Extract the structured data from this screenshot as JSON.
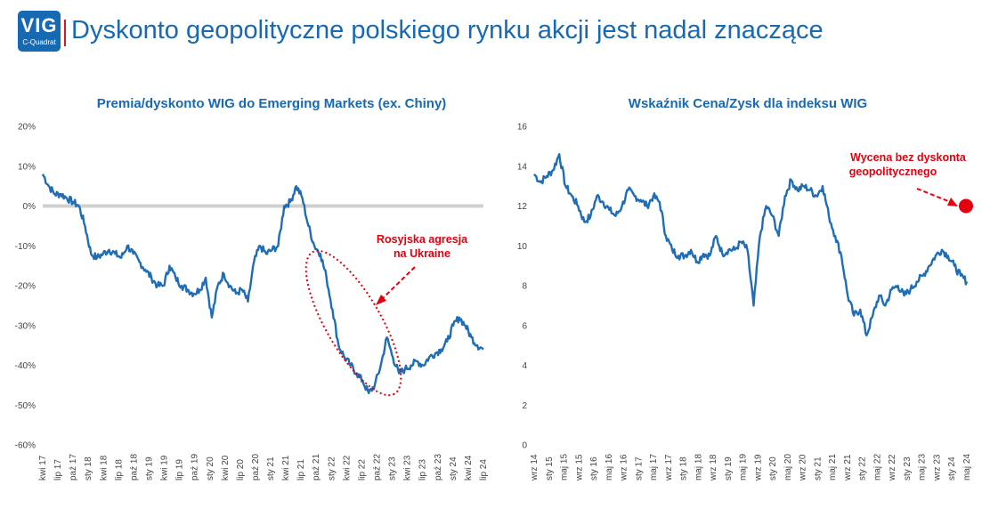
{
  "header": {
    "logo_text": "VIG",
    "logo_subtext": "C-Quadrat",
    "title": "Dyskonto geopolityczne polskiego rynku akcji jest nadal znaczące"
  },
  "colors": {
    "brand": "#1769b2",
    "series": "#1f6db4",
    "accent": "#e3000f",
    "zero_line": "#d0d0d0"
  },
  "chart_data": [
    {
      "type": "line",
      "title": "Premia/dyskonto WIG do Emerging Markets (ex. Chiny)",
      "ylim": [
        -60,
        20
      ],
      "yticks": [
        "20%",
        "10%",
        "0%",
        "-10%",
        "-20%",
        "-30%",
        "-40%",
        "-50%",
        "-60%"
      ],
      "ytick_values": [
        20,
        10,
        0,
        -10,
        -20,
        -30,
        -40,
        -50,
        -60
      ],
      "xticks": [
        "kwi 17",
        "lip 17",
        "paź 17",
        "sty 18",
        "kwi 18",
        "lip 18",
        "paź 18",
        "sty 19",
        "kwi 19",
        "lip 19",
        "paź 19",
        "sty 20",
        "kwi 20",
        "lip 20",
        "paź 20",
        "sty 21",
        "kwi 21",
        "lip 21",
        "paź 21",
        "sty 22",
        "kwi 22",
        "lip 22",
        "paź 22",
        "sty 23",
        "kwi 23",
        "lip 23",
        "paź 23",
        "sty 24",
        "kwi 24",
        "lip 24"
      ],
      "zero_line": true,
      "series": [
        {
          "values": [
            8,
            5,
            3,
            3,
            2,
            1,
            0,
            -5,
            -12,
            -13,
            -12,
            -11,
            -12,
            -13,
            -10,
            -12,
            -14,
            -16,
            -18,
            -20,
            -20,
            -15,
            -18,
            -20,
            -21,
            -22,
            -21,
            -18,
            -28,
            -20,
            -17,
            -20,
            -22,
            -21,
            -24,
            -14,
            -10,
            -12,
            -11,
            -10,
            0,
            1,
            5,
            2,
            -5,
            -10,
            -12,
            -18,
            -26,
            -35,
            -38,
            -40,
            -42,
            -44,
            -47,
            -45,
            -40,
            -33,
            -38,
            -42,
            -41,
            -40,
            -39,
            -40,
            -38,
            -37,
            -36,
            -34,
            -30,
            -28,
            -30,
            -33,
            -35,
            -36
          ]
        }
      ],
      "annotation": "Rosyjska agresja na Ukraine"
    },
    {
      "type": "line",
      "title": "Wskaźnik Cena/Zysk dla indeksu WIG",
      "ylim": [
        0,
        16
      ],
      "yticks": [
        "16",
        "14",
        "12",
        "10",
        "8",
        "6",
        "4",
        "2",
        "0"
      ],
      "ytick_values": [
        16,
        14,
        12,
        10,
        8,
        6,
        4,
        2,
        0
      ],
      "xticks": [
        "wrz 14",
        "sty 15",
        "maj 15",
        "wrz 15",
        "sty 16",
        "maj 16",
        "wrz 16",
        "sty 17",
        "maj 17",
        "wrz 17",
        "sty 18",
        "maj 18",
        "wrz 18",
        "sty 19",
        "maj 19",
        "wrz 19",
        "sty 20",
        "maj 20",
        "wrz 20",
        "sty 21",
        "maj 21",
        "wrz 21",
        "sty 22",
        "maj 22",
        "wrz 22",
        "sty 23",
        "maj 23",
        "wrz 23",
        "sty 24",
        "maj 24"
      ],
      "series": [
        {
          "values": [
            13.6,
            13.2,
            13.5,
            13.8,
            14.6,
            13.0,
            12.5,
            12.0,
            11.2,
            11.5,
            12.5,
            12.2,
            11.8,
            11.5,
            12.0,
            12.8,
            12.5,
            12.3,
            12.0,
            12.5,
            12.2,
            10.5,
            9.8,
            9.5,
            9.5,
            9.8,
            9.2,
            9.6,
            9.5,
            10.5,
            9.6,
            9.8,
            9.8,
            10.2,
            9.8,
            7.0,
            10.5,
            12.0,
            11.5,
            10.5,
            12.5,
            13.3,
            12.8,
            13.0,
            12.8,
            12.5,
            13.0,
            11.5,
            10.5,
            9.5,
            7.5,
            6.5,
            6.8,
            5.5,
            6.5,
            7.5,
            7.0,
            7.8,
            8.0,
            7.5,
            7.8,
            8.2,
            8.5,
            9.0,
            9.5,
            9.8,
            9.5,
            9.0,
            8.5,
            8.2
          ]
        }
      ],
      "annotation": "Wycena bez dyskonta geopolitycznego",
      "target_point": {
        "y": 12
      }
    }
  ]
}
